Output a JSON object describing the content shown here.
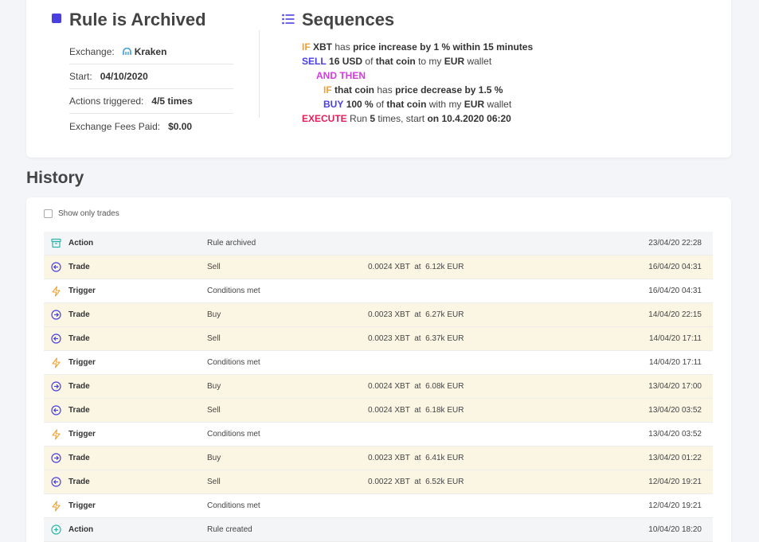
{
  "rule": {
    "title": "Rule is Archived",
    "exchange_label": "Exchange:",
    "exchange_value": "Kraken",
    "start_label": "Start:",
    "start_value": "04/10/2020",
    "actions_label": "Actions triggered:",
    "actions_value": "4/5 times",
    "fees_label": "Exchange Fees Paid:",
    "fees_value": "$0.00"
  },
  "sequences": {
    "title": "Sequences",
    "line1": {
      "if": "IF",
      "coin": "XBT",
      "has": "has",
      "cond": "price increase by 1 % within 15 minutes"
    },
    "line2": {
      "sell": "SELL",
      "amount": "16 USD",
      "of": "of",
      "that": "that coin",
      "to": "to my",
      "cur": "EUR",
      "wallet": "wallet"
    },
    "line3": {
      "and_then": "AND THEN"
    },
    "line4": {
      "if": "IF",
      "that": "that coin",
      "has": "has",
      "cond": "price decrease by 1.5 %"
    },
    "line5": {
      "buy": "BUY",
      "amount": "100 %",
      "of": "of",
      "that": "that coin",
      "with": "with my",
      "cur": "EUR",
      "wallet": "wallet"
    },
    "line6": {
      "execute": "EXECUTE",
      "run": "Run",
      "times_n": "5",
      "times_rest": "times, start",
      "on": "on 10.4.2020 06:20"
    }
  },
  "history": {
    "heading": "History",
    "checkbox_label": "Show only trades",
    "rows": [
      {
        "kind": "action",
        "icon": "archive-icon",
        "type": "Action",
        "desc": "Rule archived",
        "detail": "",
        "date": "23/04/20 22:28"
      },
      {
        "kind": "trade",
        "icon": "sell-arrow-icon",
        "type": "Trade",
        "desc": "Sell",
        "detail": "0.0024 XBT  at  6.12k EUR",
        "date": "16/04/20 04:31"
      },
      {
        "kind": "trigger",
        "icon": "lightning-icon",
        "type": "Trigger",
        "desc": "Conditions met",
        "detail": "",
        "date": "16/04/20 04:31"
      },
      {
        "kind": "trade",
        "icon": "buy-arrow-icon",
        "type": "Trade",
        "desc": "Buy",
        "detail": "0.0023 XBT  at  6.27k EUR",
        "date": "14/04/20 22:15"
      },
      {
        "kind": "trade",
        "icon": "sell-arrow-icon",
        "type": "Trade",
        "desc": "Sell",
        "detail": "0.0023 XBT  at  6.37k EUR",
        "date": "14/04/20 17:11"
      },
      {
        "kind": "trigger",
        "icon": "lightning-icon",
        "type": "Trigger",
        "desc": "Conditions met",
        "detail": "",
        "date": "14/04/20 17:11"
      },
      {
        "kind": "trade",
        "icon": "buy-arrow-icon",
        "type": "Trade",
        "desc": "Buy",
        "detail": "0.0024 XBT  at  6.08k EUR",
        "date": "13/04/20 17:00"
      },
      {
        "kind": "trade",
        "icon": "sell-arrow-icon",
        "type": "Trade",
        "desc": "Sell",
        "detail": "0.0024 XBT  at  6.18k EUR",
        "date": "13/04/20 03:52"
      },
      {
        "kind": "trigger",
        "icon": "lightning-icon",
        "type": "Trigger",
        "desc": "Conditions met",
        "detail": "",
        "date": "13/04/20 03:52"
      },
      {
        "kind": "trade",
        "icon": "buy-arrow-icon",
        "type": "Trade",
        "desc": "Buy",
        "detail": "0.0023 XBT  at  6.41k EUR",
        "date": "13/04/20 01:22"
      },
      {
        "kind": "trade",
        "icon": "sell-arrow-icon",
        "type": "Trade",
        "desc": "Sell",
        "detail": "0.0022 XBT  at  6.52k EUR",
        "date": "12/04/20 19:21"
      },
      {
        "kind": "trigger",
        "icon": "lightning-icon",
        "type": "Trigger",
        "desc": "Conditions met",
        "detail": "",
        "date": "12/04/20 19:21"
      },
      {
        "kind": "action",
        "icon": "plus-circle-icon",
        "type": "Action",
        "desc": "Rule created",
        "detail": "",
        "date": "10/04/20 18:20"
      }
    ]
  },
  "colors": {
    "primary": "#4a40e0",
    "if": "#e8a23a",
    "and_then": "#d63be0",
    "execute": "#e01e5a",
    "trade_row_bg": "#fbf6e4",
    "action_row_bg": "#f4f5f7",
    "action_icon": "#2bb5a8"
  }
}
